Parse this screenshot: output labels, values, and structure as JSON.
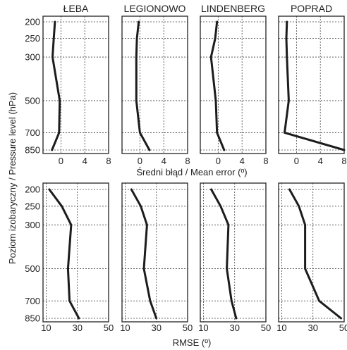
{
  "chart_data": {
    "type": "line",
    "y_axis_label": "Poziom izobaryczny / Pressure level (hPa)",
    "pressure_levels": [
      200,
      250,
      300,
      500,
      700,
      850
    ],
    "y_ticks": [
      "200",
      "250",
      "300",
      "500",
      "700",
      "850"
    ],
    "rows": [
      {
        "name": "mean_error",
        "xlabel": "Średni błąd / Mean error (º)",
        "xlim": [
          -3,
          8
        ],
        "x_ticks": [
          "0",
          "4",
          "8"
        ],
        "grid": "dotted",
        "panels": [
          {
            "title": "ŁEBA",
            "values": [
              -1.0,
              -1.2,
              -1.4,
              -0.2,
              -0.3,
              -1.5
            ]
          },
          {
            "title": "LEGIONOWO",
            "values": [
              -0.2,
              -0.5,
              -0.6,
              -0.6,
              0.0,
              1.6
            ]
          },
          {
            "title": "LINDENBERG",
            "values": [
              -0.2,
              -0.5,
              -1.2,
              -0.4,
              -0.2,
              1.0
            ]
          },
          {
            "title": "POPRAD",
            "values": [
              -1.6,
              -1.7,
              -1.6,
              -1.3,
              -2.0,
              8.0
            ]
          }
        ]
      },
      {
        "name": "rmse",
        "xlabel": "RMSE (º)",
        "xlim": [
          8,
          50
        ],
        "x_ticks": [
          "10",
          "30",
          "50"
        ],
        "grid": "dotted",
        "panels": [
          {
            "title": "ŁEBA",
            "values": [
              12,
              20,
              26,
              24,
              25,
              31
            ]
          },
          {
            "title": "LEGIONOWO",
            "values": [
              14,
              20,
              24,
              22,
              26,
              30
            ]
          },
          {
            "title": "LINDENBERG",
            "values": [
              15,
              21,
              26,
              25,
              28,
              31
            ]
          },
          {
            "title": "POPRAD",
            "values": [
              15,
              21,
              25,
              25,
              34,
              48
            ]
          }
        ]
      }
    ]
  }
}
